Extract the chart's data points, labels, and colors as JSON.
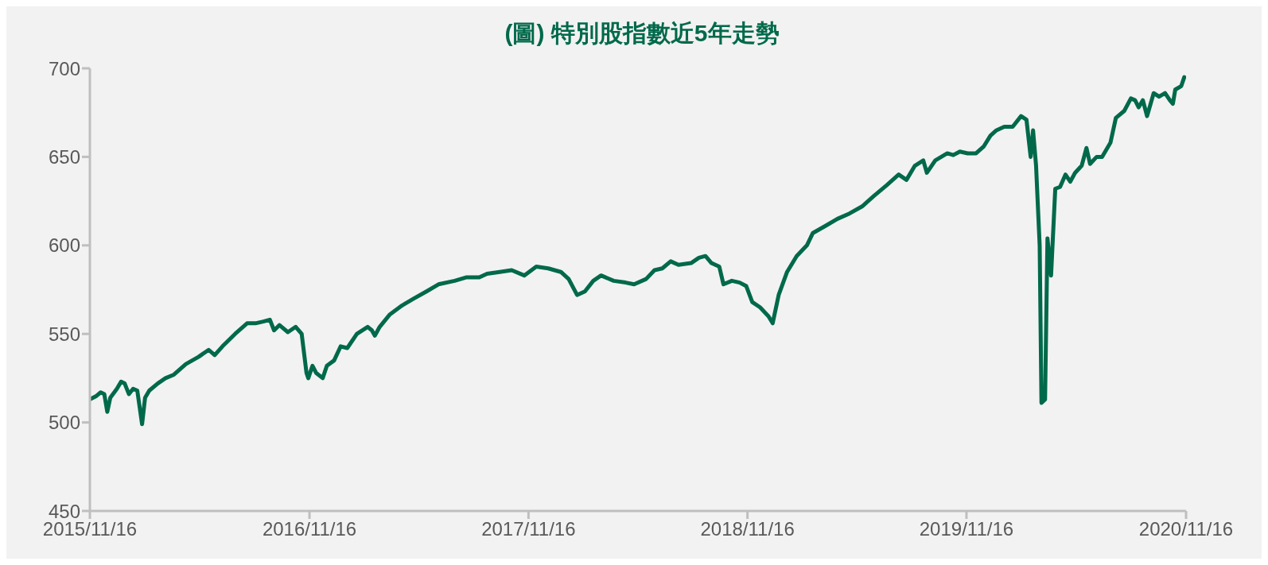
{
  "chart_data": {
    "type": "line",
    "title": "(圖) 特別股指數近5年走勢",
    "x": [
      "2015-11-16",
      "2015-11-27",
      "2015-12-04",
      "2015-12-10",
      "2015-12-15",
      "2015-12-20",
      "2015-12-31",
      "2016-01-07",
      "2016-01-13",
      "2016-01-20",
      "2016-01-27",
      "2016-02-03",
      "2016-02-11",
      "2016-02-16",
      "2016-02-23",
      "2016-03-08",
      "2016-03-21",
      "2016-04-04",
      "2016-04-24",
      "2016-05-15",
      "2016-06-01",
      "2016-06-11",
      "2016-06-24",
      "2016-07-15",
      "2016-08-04",
      "2016-08-18",
      "2016-08-31",
      "2016-09-11",
      "2016-09-18",
      "2016-09-27",
      "2016-10-11",
      "2016-10-24",
      "2016-11-03",
      "2016-11-11",
      "2016-11-14",
      "2016-11-21",
      "2016-11-27",
      "2016-12-08",
      "2016-12-15",
      "2016-12-27",
      "2017-01-07",
      "2017-01-18",
      "2017-02-03",
      "2017-02-21",
      "2017-02-28",
      "2017-03-05",
      "2017-03-13",
      "2017-03-30",
      "2017-04-19",
      "2017-05-09",
      "2017-05-30",
      "2017-06-19",
      "2017-07-16",
      "2017-08-05",
      "2017-08-26",
      "2017-09-08",
      "2017-09-29",
      "2017-10-19",
      "2017-11-09",
      "2017-11-29",
      "2017-12-19",
      "2018-01-09",
      "2018-01-22",
      "2018-02-05",
      "2018-02-18",
      "2018-03-04",
      "2018-03-17",
      "2018-04-07",
      "2018-04-27",
      "2018-05-11",
      "2018-05-31",
      "2018-06-14",
      "2018-06-27",
      "2018-07-11",
      "2018-07-24",
      "2018-08-14",
      "2018-08-27",
      "2018-09-07",
      "2018-09-17",
      "2018-09-30",
      "2018-10-07",
      "2018-10-21",
      "2018-11-03",
      "2018-11-14",
      "2018-11-24",
      "2018-12-07",
      "2018-12-21",
      "2018-12-28",
      "2019-01-07",
      "2019-01-21",
      "2019-02-06",
      "2019-02-23",
      "2019-03-05",
      "2019-03-26",
      "2019-04-15",
      "2019-05-05",
      "2019-05-26",
      "2019-06-15",
      "2019-07-06",
      "2019-07-26",
      "2019-08-08",
      "2019-08-22",
      "2019-09-05",
      "2019-09-11",
      "2019-09-25",
      "2019-10-15",
      "2019-10-25",
      "2019-11-05",
      "2019-11-18",
      "2019-12-02",
      "2019-12-15",
      "2019-12-26",
      "2020-01-05",
      "2020-01-18",
      "2020-02-01",
      "2020-02-15",
      "2020-02-24",
      "2020-03-02",
      "2020-03-06",
      "2020-03-11",
      "2020-03-17",
      "2020-03-20",
      "2020-03-26",
      "2020-03-30",
      "2020-04-05",
      "2020-04-12",
      "2020-04-20",
      "2020-04-29",
      "2020-05-07",
      "2020-05-15",
      "2020-05-26",
      "2020-06-03",
      "2020-06-09",
      "2020-06-20",
      "2020-06-29",
      "2020-07-13",
      "2020-07-22",
      "2020-08-05",
      "2020-08-16",
      "2020-08-23",
      "2020-08-29",
      "2020-09-05",
      "2020-09-12",
      "2020-09-23",
      "2020-10-02",
      "2020-10-12",
      "2020-10-20",
      "2020-10-25",
      "2020-10-29",
      "2020-11-08",
      "2020-11-13"
    ],
    "series": [
      {
        "color": "#00694a",
        "values": [
          513,
          515,
          517,
          516,
          506,
          514,
          519,
          523,
          522,
          516,
          519,
          518,
          499,
          514,
          518,
          522,
          525,
          527,
          533,
          537,
          541,
          538,
          543,
          550,
          556,
          556,
          557,
          558,
          552,
          555,
          551,
          554,
          550,
          528,
          525,
          532,
          528,
          525,
          532,
          535,
          543,
          542,
          550,
          554,
          552,
          549,
          554,
          561,
          566,
          570,
          574,
          578,
          580,
          582,
          582,
          584,
          585,
          586,
          583,
          588,
          587,
          585,
          581,
          572,
          574,
          580,
          583,
          580,
          579,
          578,
          581,
          586,
          587,
          591,
          589,
          590,
          593,
          594,
          590,
          588,
          578,
          580,
          579,
          577,
          568,
          565,
          560,
          556,
          572,
          585,
          594,
          600,
          607,
          611,
          615,
          618,
          622,
          628,
          634,
          640,
          637,
          645,
          648,
          641,
          648,
          652,
          651,
          653,
          652,
          652,
          656,
          662,
          665,
          667,
          667,
          673,
          671,
          650,
          665,
          645,
          600,
          511,
          513,
          604,
          583,
          632,
          633,
          640,
          636,
          641,
          645,
          655,
          646,
          650,
          650,
          658,
          672,
          676,
          683,
          682,
          678,
          682,
          673,
          686,
          684,
          686,
          682,
          680,
          688,
          690,
          695
        ]
      }
    ],
    "xlim": [
      "2015-11-16",
      "2020-11-16"
    ],
    "xticks": [
      {
        "value": "2015-11-16",
        "label": "2015/11/16"
      },
      {
        "value": "2016-11-16",
        "label": "2016/11/16"
      },
      {
        "value": "2017-11-16",
        "label": "2017/11/16"
      },
      {
        "value": "2018-11-16",
        "label": "2018/11/16"
      },
      {
        "value": "2019-11-16",
        "label": "2019/11/16"
      },
      {
        "value": "2020-11-16",
        "label": "2020/11/16"
      }
    ],
    "ylim": [
      450,
      700
    ],
    "yticks": [
      450,
      500,
      550,
      600,
      650,
      700
    ],
    "grid": false,
    "line_style": "solid"
  }
}
